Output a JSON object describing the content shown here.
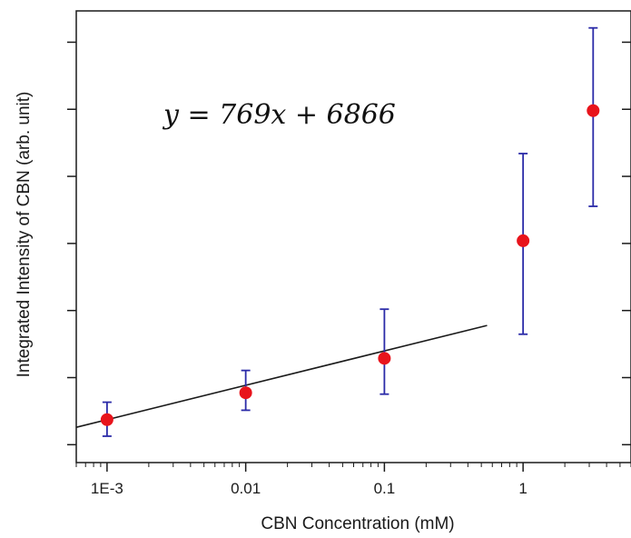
{
  "chart_data": {
    "type": "scatter",
    "title": "",
    "xlabel": "CBN Concentration (mM)",
    "ylabel": "Integrated Intensity of CBN (arb. unit)",
    "x_scale": "log",
    "xlim": [
      0.0006,
      6
    ],
    "ylim": [
      3600,
      13700
    ],
    "x_tick_labels": [
      "1E-3",
      "0.01",
      "0.1",
      "1"
    ],
    "x_tick_values": [
      0.001,
      0.01,
      0.1,
      1
    ],
    "y_tick_labels_shown": false,
    "grid": false,
    "legend": "none",
    "annotation": "y = 769x + 6866",
    "series": [
      {
        "marker": "circle",
        "color": "#e8141c",
        "error_bar_color": "#2b2ba8",
        "x": [
          0.001,
          0.01,
          0.1,
          1,
          3.2
        ],
        "y": [
          4560,
          5160,
          5930,
          8560,
          11470
        ],
        "yerr_low": [
          4190,
          4770,
          5130,
          6470,
          9330
        ],
        "yerr_high": [
          4950,
          5660,
          7030,
          10510,
          13320
        ]
      }
    ],
    "fit_line": {
      "slope": 769,
      "intercept": 6866,
      "x_start": 0.0006,
      "x_end": 0.55,
      "color": "#1a1a1a"
    }
  }
}
